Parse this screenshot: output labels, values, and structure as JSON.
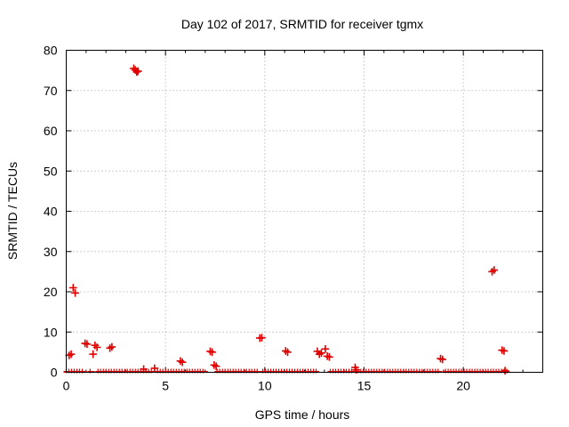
{
  "chart_data": {
    "type": "scatter",
    "title": "Day 102 of 2017, SRMTID for receiver tgmx",
    "xlabel": "GPS time / hours",
    "ylabel": "SRMTID / TECUs",
    "xlim": [
      0,
      24
    ],
    "ylim": [
      0,
      80
    ],
    "x_ticks": [
      "0",
      "5",
      "10",
      "15",
      "20"
    ],
    "x_tick_values": [
      0,
      5,
      10,
      15,
      20
    ],
    "y_ticks": [
      "0",
      "10",
      "20",
      "30",
      "40",
      "50",
      "60",
      "70",
      "80"
    ],
    "y_tick_values": [
      0,
      10,
      20,
      30,
      40,
      50,
      60,
      70,
      80
    ],
    "grid": true,
    "marker": "plus",
    "color": "#e00000",
    "baseline_segments": [
      {
        "x_start": 0.0,
        "x_end": 0.9,
        "y": 0.1
      },
      {
        "x_start": 1.2,
        "x_end": 1.3,
        "y": 0.1
      },
      {
        "x_start": 1.6,
        "x_end": 4.4,
        "y": 0.1
      },
      {
        "x_start": 4.6,
        "x_end": 7.0,
        "y": 0.1
      },
      {
        "x_start": 7.6,
        "x_end": 9.7,
        "y": 0.1
      },
      {
        "x_start": 9.9,
        "x_end": 12.6,
        "y": 0.1
      },
      {
        "x_start": 13.3,
        "x_end": 14.5,
        "y": 0.1
      },
      {
        "x_start": 14.7,
        "x_end": 18.8,
        "y": 0.1
      },
      {
        "x_start": 19.1,
        "x_end": 22.2,
        "y": 0.1
      }
    ],
    "points": [
      {
        "x": 0.15,
        "y": 4.2
      },
      {
        "x": 0.25,
        "y": 4.5
      },
      {
        "x": 0.35,
        "y": 21.0
      },
      {
        "x": 0.45,
        "y": 19.7
      },
      {
        "x": 0.95,
        "y": 7.2
      },
      {
        "x": 1.05,
        "y": 7.0
      },
      {
        "x": 1.35,
        "y": 4.5
      },
      {
        "x": 1.45,
        "y": 6.7
      },
      {
        "x": 1.55,
        "y": 6.2
      },
      {
        "x": 2.2,
        "y": 6.0
      },
      {
        "x": 2.3,
        "y": 6.3
      },
      {
        "x": 3.4,
        "y": 75.5
      },
      {
        "x": 3.48,
        "y": 75.1
      },
      {
        "x": 3.55,
        "y": 74.6
      },
      {
        "x": 3.62,
        "y": 74.8
      },
      {
        "x": 3.9,
        "y": 0.8
      },
      {
        "x": 4.45,
        "y": 1.0
      },
      {
        "x": 5.75,
        "y": 2.8
      },
      {
        "x": 5.85,
        "y": 2.5
      },
      {
        "x": 7.25,
        "y": 5.2
      },
      {
        "x": 7.35,
        "y": 5.0
      },
      {
        "x": 7.45,
        "y": 1.8
      },
      {
        "x": 7.55,
        "y": 1.5
      },
      {
        "x": 9.75,
        "y": 8.5
      },
      {
        "x": 9.85,
        "y": 8.6
      },
      {
        "x": 11.05,
        "y": 5.3
      },
      {
        "x": 11.15,
        "y": 5.0
      },
      {
        "x": 12.65,
        "y": 5.2
      },
      {
        "x": 12.75,
        "y": 4.5
      },
      {
        "x": 12.85,
        "y": 4.8
      },
      {
        "x": 13.05,
        "y": 5.8
      },
      {
        "x": 13.15,
        "y": 4.0
      },
      {
        "x": 13.25,
        "y": 3.8
      },
      {
        "x": 14.55,
        "y": 1.2
      },
      {
        "x": 14.6,
        "y": 0.6
      },
      {
        "x": 18.85,
        "y": 3.4
      },
      {
        "x": 18.95,
        "y": 3.2
      },
      {
        "x": 21.45,
        "y": 25.0
      },
      {
        "x": 21.55,
        "y": 25.4
      },
      {
        "x": 21.95,
        "y": 5.5
      },
      {
        "x": 22.05,
        "y": 5.3
      },
      {
        "x": 22.1,
        "y": 0.4
      }
    ]
  }
}
